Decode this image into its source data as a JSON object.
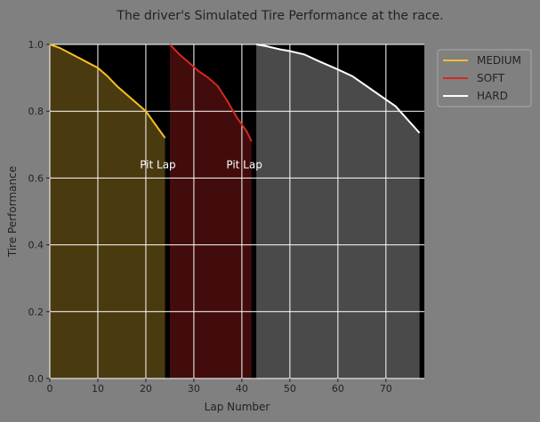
{
  "chart_data": {
    "type": "area",
    "title": "The driver's Simulated Tire Performance at the race.",
    "xlabel": "Lap Number",
    "ylabel": "Tire Performance",
    "xlim": [
      0,
      78
    ],
    "ylim": [
      0,
      1.0
    ],
    "xticks": [
      0,
      10,
      20,
      30,
      40,
      50,
      60,
      70
    ],
    "yticks": [
      0.0,
      0.2,
      0.4,
      0.6,
      0.8,
      1.0
    ],
    "xtick_labels": [
      "0",
      "10",
      "20",
      "30",
      "40",
      "50",
      "60",
      "70"
    ],
    "ytick_labels": [
      "0.0",
      "0.2",
      "0.4",
      "0.6",
      "0.8",
      "1.0"
    ],
    "grid": true,
    "legend_position": "outside-top-right",
    "colors": {
      "figure_bg": "#808080",
      "plot_bg": "#000000",
      "grid": "#ffffff",
      "text": "#222222"
    },
    "series": [
      {
        "name": "MEDIUM",
        "color": "#f5c026",
        "fill": "#4a3a0f",
        "x": [
          0,
          2,
          4,
          6,
          8,
          10,
          12,
          14,
          16,
          18,
          20,
          22,
          24
        ],
        "y": [
          1.0,
          0.99,
          0.975,
          0.96,
          0.945,
          0.93,
          0.905,
          0.875,
          0.85,
          0.825,
          0.8,
          0.76,
          0.72
        ]
      },
      {
        "name": "SOFT",
        "color": "#d42820",
        "fill": "#420c0c",
        "x": [
          25,
          27,
          29,
          31,
          33,
          35,
          37,
          39,
          41,
          42
        ],
        "y": [
          1.0,
          0.97,
          0.945,
          0.92,
          0.9,
          0.875,
          0.83,
          0.78,
          0.74,
          0.71
        ]
      },
      {
        "name": "HARD",
        "color": "#ffffff",
        "fill": "#4a4a4a",
        "x": [
          43,
          45,
          48,
          50,
          53,
          56,
          60,
          63,
          66,
          69,
          72,
          77
        ],
        "y": [
          1.0,
          0.995,
          0.985,
          0.98,
          0.97,
          0.95,
          0.925,
          0.905,
          0.875,
          0.845,
          0.815,
          0.735
        ]
      }
    ],
    "annotations": [
      {
        "text": "Pit Lap",
        "x": 22.5,
        "y": 0.64
      },
      {
        "text": "Pit Lap",
        "x": 40.5,
        "y": 0.64
      }
    ]
  }
}
